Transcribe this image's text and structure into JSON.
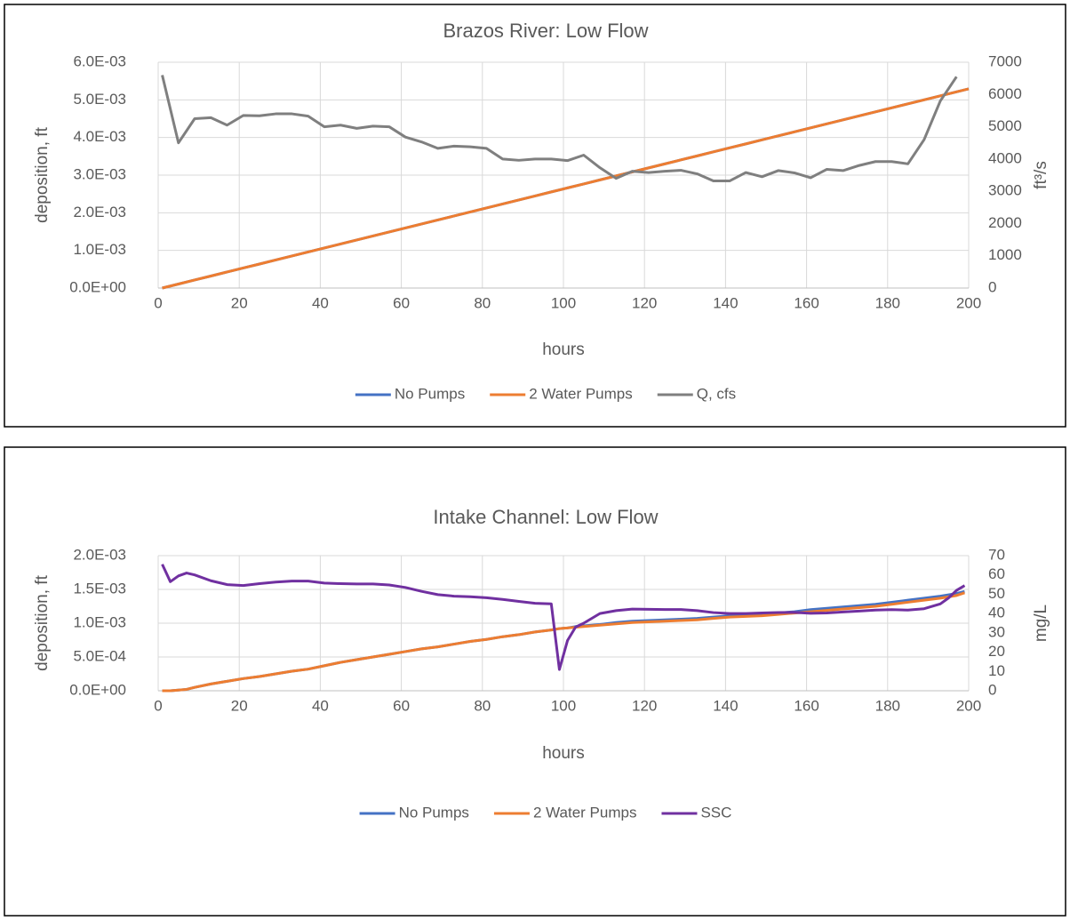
{
  "chart_data": [
    {
      "type": "line",
      "title": "Brazos River: Low Flow",
      "x_label": "hours",
      "y_label": "deposition, ft",
      "y2_label": "ft³/s",
      "x": [
        1,
        5,
        9,
        13,
        17,
        21,
        25,
        29,
        33,
        37,
        41,
        45,
        49,
        53,
        57,
        61,
        65,
        69,
        73,
        77,
        81,
        85,
        89,
        93,
        97,
        101,
        105,
        109,
        113,
        117,
        121,
        125,
        129,
        133,
        137,
        141,
        145,
        149,
        153,
        157,
        161,
        165,
        169,
        173,
        177,
        181,
        185,
        189,
        193,
        197,
        200
      ],
      "series": [
        {
          "name": "No Pumps",
          "color": "#4472c4",
          "values": [
            0,
            0.000106,
            0.000213,
            0.000319,
            0.000426,
            0.000532,
            0.000638,
            0.000745,
            0.000851,
            0.000958,
            0.001064,
            0.00117,
            0.001277,
            0.001383,
            0.00149,
            0.001596,
            0.001702,
            0.001809,
            0.001915,
            0.002022,
            0.002128,
            0.002234,
            0.002341,
            0.002447,
            0.002554,
            0.00266,
            0.002766,
            0.002873,
            0.002979,
            0.003086,
            0.003192,
            0.003298,
            0.003405,
            0.003511,
            0.003618,
            0.003724,
            0.00383,
            0.003937,
            0.004043,
            0.00415,
            0.004256,
            0.004362,
            0.004469,
            0.004575,
            0.004682,
            0.004788,
            0.004894,
            0.005001,
            0.005107,
            0.005214,
            0.005293
          ]
        },
        {
          "name": "2 Water Pumps",
          "color": "#ed7d31",
          "values": [
            0,
            0.000106,
            0.000213,
            0.000319,
            0.000426,
            0.000532,
            0.000638,
            0.000745,
            0.000851,
            0.000958,
            0.001064,
            0.00117,
            0.001277,
            0.001383,
            0.00149,
            0.001596,
            0.001702,
            0.001809,
            0.001915,
            0.002022,
            0.002128,
            0.002234,
            0.002341,
            0.002447,
            0.002554,
            0.00266,
            0.002766,
            0.002873,
            0.002979,
            0.003086,
            0.003192,
            0.003298,
            0.003405,
            0.003511,
            0.003618,
            0.003724,
            0.00383,
            0.003937,
            0.004043,
            0.00415,
            0.004256,
            0.004362,
            0.004469,
            0.004575,
            0.004682,
            0.004788,
            0.004894,
            0.005001,
            0.005107,
            0.005214,
            0.005293
          ]
        },
        {
          "name": "Q, cfs",
          "color": "#7f7f7f",
          "axis": "y2",
          "values": [
            6600,
            4500,
            5250,
            5280,
            5050,
            5350,
            5340,
            5400,
            5400,
            5330,
            5000,
            5050,
            4950,
            5020,
            5000,
            4680,
            4530,
            4330,
            4400,
            4380,
            4330,
            4000,
            3960,
            4000,
            4000,
            3950,
            4120,
            3730,
            3400,
            3620,
            3580,
            3620,
            3650,
            3540,
            3320,
            3320,
            3580,
            3450,
            3640,
            3570,
            3420,
            3680,
            3640,
            3800,
            3920,
            3920,
            3850,
            4600,
            5800,
            6550,
            null
          ]
        }
      ],
      "xlim": [
        0,
        200
      ],
      "xticks": [
        0,
        20,
        40,
        60,
        80,
        100,
        120,
        140,
        160,
        180,
        200
      ],
      "ylim": [
        0,
        0.006
      ],
      "yticks": [
        {
          "value": 0,
          "label": "0.0E+00"
        },
        {
          "value": 0.001,
          "label": "1.0E-03"
        },
        {
          "value": 0.002,
          "label": "2.0E-03"
        },
        {
          "value": 0.003,
          "label": "3.0E-03"
        },
        {
          "value": 0.004,
          "label": "4.0E-03"
        },
        {
          "value": 0.005,
          "label": "5.0E-03"
        },
        {
          "value": 0.006,
          "label": "6.0E-03"
        }
      ],
      "y2lim": [
        0,
        7000
      ],
      "y2ticks": [
        0,
        1000,
        2000,
        3000,
        4000,
        5000,
        6000,
        7000
      ],
      "grid": true,
      "legend": "bottom"
    },
    {
      "type": "line",
      "title": "Intake Channel: Low Flow",
      "x_label": "hours",
      "y_label": "deposition, ft",
      "y2_label": "mg/L",
      "x": [
        1,
        3,
        5,
        7,
        9,
        13,
        17,
        21,
        25,
        29,
        33,
        37,
        41,
        45,
        49,
        53,
        57,
        61,
        65,
        69,
        73,
        77,
        81,
        85,
        89,
        93,
        97,
        99,
        101,
        103,
        105,
        109,
        113,
        117,
        121,
        125,
        129,
        133,
        137,
        141,
        145,
        149,
        153,
        157,
        161,
        165,
        169,
        173,
        177,
        181,
        185,
        189,
        193,
        195,
        197,
        199
      ],
      "series": [
        {
          "name": "No Pumps",
          "color": "#4472c4",
          "values": [
            0,
            0,
            1e-05,
            2e-05,
            5e-05,
            0.0001,
            0.00014,
            0.00018,
            0.00021,
            0.00025,
            0.00029,
            0.00032,
            0.00037,
            0.00042,
            0.00046,
            0.0005,
            0.00054,
            0.00058,
            0.00062,
            0.00065,
            0.00069,
            0.00073,
            0.00076,
            0.0008,
            0.00083,
            0.00087,
            0.0009,
            0.00092,
            0.00093,
            0.00095,
            0.00096,
            0.00098,
            0.00101,
            0.00103,
            0.00104,
            0.00105,
            0.00106,
            0.00107,
            0.00109,
            0.00111,
            0.00112,
            0.00113,
            0.00115,
            0.00117,
            0.0012,
            0.00122,
            0.00124,
            0.00126,
            0.00128,
            0.00131,
            0.00134,
            0.00137,
            0.0014,
            0.00142,
            0.00144,
            0.00147
          ]
        },
        {
          "name": "2 Water Pumps",
          "color": "#ed7d31",
          "values": [
            0,
            0,
            1e-05,
            2e-05,
            5e-05,
            0.0001,
            0.00014,
            0.00018,
            0.00021,
            0.00025,
            0.00029,
            0.00032,
            0.00037,
            0.00042,
            0.00046,
            0.0005,
            0.00054,
            0.00058,
            0.00062,
            0.00065,
            0.00069,
            0.00073,
            0.00076,
            0.0008,
            0.00083,
            0.00087,
            0.0009,
            0.00092,
            0.00093,
            0.00094,
            0.00095,
            0.00097,
            0.00099,
            0.00101,
            0.00102,
            0.00103,
            0.00104,
            0.00105,
            0.00107,
            0.00109,
            0.0011,
            0.00111,
            0.00113,
            0.00115,
            0.00117,
            0.00119,
            0.00121,
            0.00123,
            0.00125,
            0.00128,
            0.00131,
            0.00134,
            0.00137,
            0.00139,
            0.00141,
            0.00145
          ]
        },
        {
          "name": "SSC",
          "color": "#7030a0",
          "axis": "y2",
          "values": [
            65.5,
            56.5,
            59.5,
            61,
            60,
            57,
            55,
            54.5,
            55.5,
            56.3,
            56.8,
            56.8,
            55.8,
            55.5,
            55.3,
            55.3,
            54.8,
            53.5,
            51.5,
            49.8,
            49,
            48.7,
            48.2,
            47.3,
            46.3,
            45.3,
            45,
            11,
            26,
            33,
            35,
            40,
            41.5,
            42.3,
            42.2,
            42.1,
            42.1,
            41.5,
            40.5,
            40,
            40,
            40.3,
            40.5,
            40.6,
            40.1,
            40.3,
            40.8,
            41.3,
            41.8,
            42,
            41.8,
            42.5,
            45,
            48,
            52,
            54.5
          ]
        }
      ],
      "xlim": [
        0,
        200
      ],
      "xticks": [
        0,
        20,
        40,
        60,
        80,
        100,
        120,
        140,
        160,
        180,
        200
      ],
      "ylim": [
        0,
        0.002
      ],
      "yticks": [
        {
          "value": 0,
          "label": "0.0E+00"
        },
        {
          "value": 0.0005,
          "label": "5.0E-04"
        },
        {
          "value": 0.001,
          "label": "1.0E-03"
        },
        {
          "value": 0.0015,
          "label": "1.5E-03"
        },
        {
          "value": 0.002,
          "label": "2.0E-03"
        }
      ],
      "y2lim": [
        0,
        70
      ],
      "y2ticks": [
        0,
        10,
        20,
        30,
        40,
        50,
        60,
        70
      ],
      "grid": true,
      "legend": "bottom"
    }
  ]
}
